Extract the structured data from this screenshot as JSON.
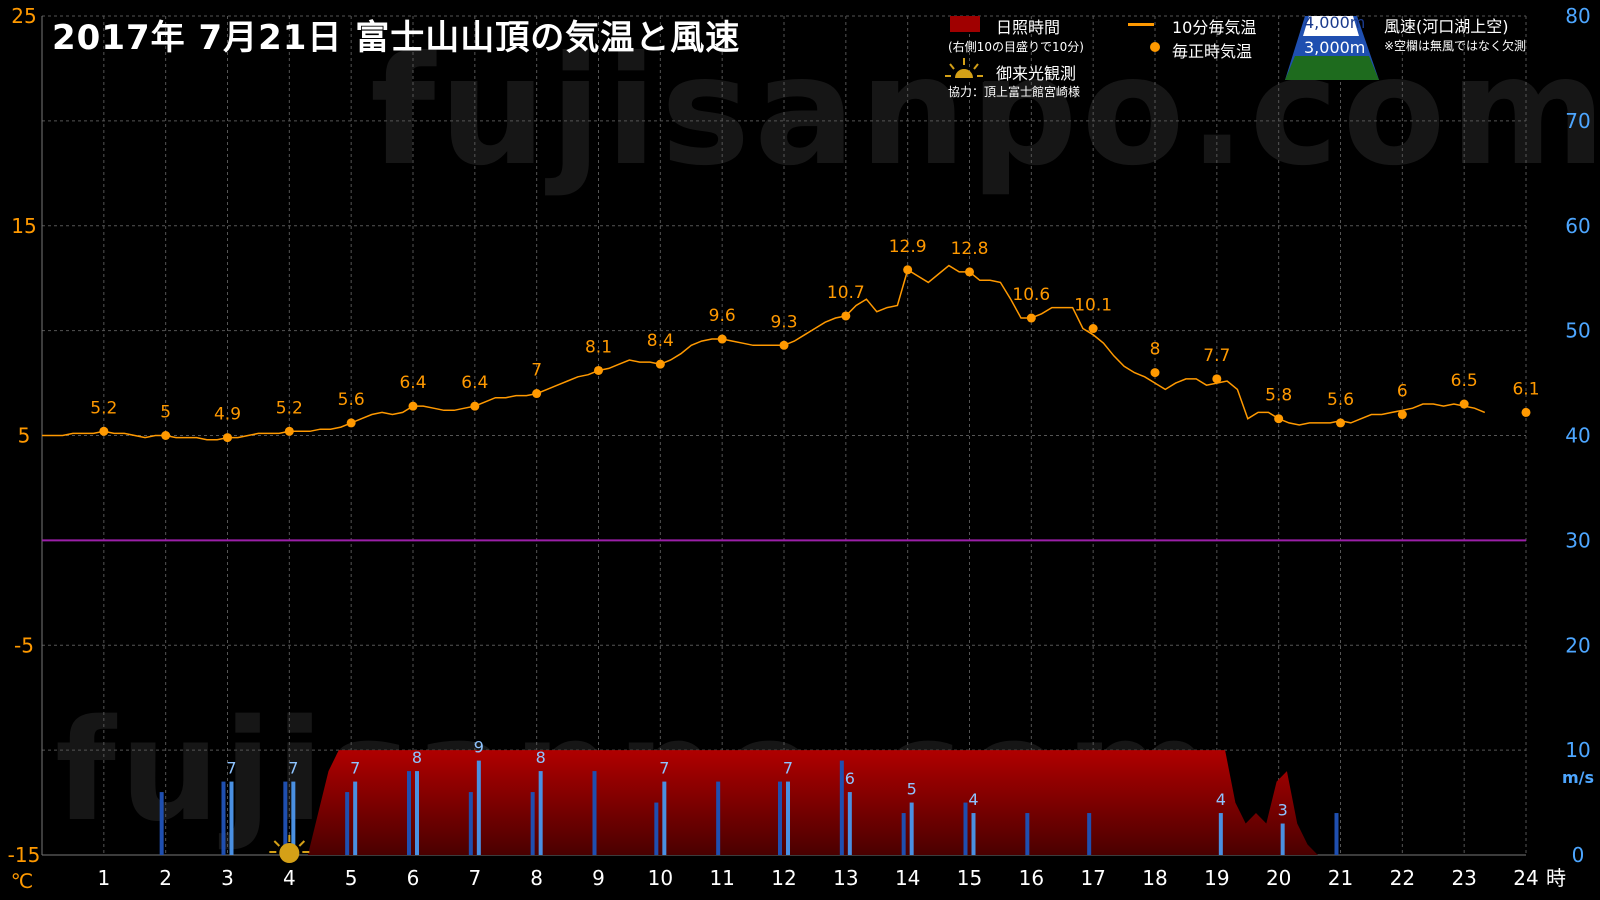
{
  "title": "2017年  7月21日   富士山山頂の気温と風速",
  "watermark": "fujisanpo.com",
  "legend": {
    "sunshine_label": "日照時間",
    "sunshine_note": "(右側10の目盛りで10分)",
    "temp10_label": "10分毎気温",
    "hourly_label": "毎正時気温",
    "alt4000": "4,000m",
    "alt3000": "3,000m",
    "wind_label": "風速(河口湖上空)",
    "wind_note": "※空欄は無風ではなく欠測",
    "sunrise_label": "御来光観測",
    "credit": "協力：頂上富士館宮崎様"
  },
  "colors": {
    "temperature": "#ff9900",
    "wind_3000": "#1f4fb0",
    "wind_4000": "#4a90e2",
    "sunshine": "#8b0000",
    "zero_line": "#9b1fa8",
    "wind_axis": "#4da6ff",
    "background": "#000000"
  },
  "chart_data": {
    "type": "line",
    "x_unit": "時",
    "x_ticks": [
      "1",
      "2",
      "3",
      "4",
      "5",
      "6",
      "7",
      "8",
      "9",
      "10",
      "11",
      "12",
      "13",
      "14",
      "15",
      "16",
      "17",
      "18",
      "19",
      "20",
      "21",
      "22",
      "23",
      "24"
    ],
    "x_range": [
      0,
      24
    ],
    "y_left": {
      "unit": "℃",
      "range": [
        -15,
        25
      ],
      "ticks": [
        "-15",
        "-5",
        "5",
        "15",
        "25"
      ]
    },
    "y_right": {
      "unit": "m/s",
      "range": [
        0,
        80
      ],
      "ticks": [
        "0",
        "10",
        "20",
        "30",
        "40",
        "50",
        "60",
        "70",
        "80"
      ]
    },
    "grid": true,
    "hourly_temperature": {
      "hours": [
        1,
        2,
        3,
        4,
        5,
        6,
        7,
        8,
        9,
        10,
        11,
        12,
        13,
        14,
        15,
        16,
        17,
        18,
        19,
        20,
        21,
        22,
        23,
        24
      ],
      "values": [
        5.2,
        5,
        4.9,
        5.2,
        5.6,
        6.4,
        6.4,
        7,
        8.1,
        8.4,
        9.6,
        9.3,
        10.7,
        12.9,
        12.8,
        10.6,
        10.1,
        8,
        7.7,
        5.8,
        5.6,
        6,
        6.5,
        6.1
      ]
    },
    "temperature_10min": {
      "start_hour": 0,
      "step_minutes": 10,
      "values": [
        5.0,
        5.0,
        5.0,
        5.1,
        5.1,
        5.1,
        5.2,
        5.1,
        5.1,
        5.0,
        4.9,
        5.0,
        5.0,
        4.9,
        4.9,
        4.9,
        4.8,
        4.8,
        4.9,
        4.9,
        5.0,
        5.1,
        5.1,
        5.1,
        5.2,
        5.2,
        5.2,
        5.3,
        5.3,
        5.4,
        5.6,
        5.8,
        6.0,
        6.1,
        6.0,
        6.1,
        6.4,
        6.4,
        6.3,
        6.2,
        6.2,
        6.3,
        6.4,
        6.6,
        6.8,
        6.8,
        6.9,
        6.9,
        7.0,
        7.2,
        7.4,
        7.6,
        7.8,
        7.9,
        8.1,
        8.2,
        8.4,
        8.6,
        8.5,
        8.5,
        8.4,
        8.6,
        8.9,
        9.3,
        9.5,
        9.6,
        9.6,
        9.5,
        9.4,
        9.3,
        9.3,
        9.3,
        9.3,
        9.5,
        9.8,
        10.1,
        10.4,
        10.6,
        10.7,
        11.2,
        11.5,
        10.9,
        11.1,
        11.2,
        12.9,
        12.6,
        12.3,
        12.7,
        13.1,
        12.8,
        12.8,
        12.4,
        12.4,
        12.3,
        11.5,
        10.6,
        10.6,
        10.8,
        11.1,
        11.1,
        11.1,
        10.1,
        9.8,
        9.4,
        8.8,
        8.3,
        8.0,
        7.8,
        7.5,
        7.2,
        7.5,
        7.7,
        7.7,
        7.4,
        7.5,
        7.6,
        7.2,
        5.8,
        6.1,
        6.1,
        5.8,
        5.6,
        5.5,
        5.6,
        5.6,
        5.6,
        5.7,
        5.6,
        5.8,
        6.0,
        6.0,
        6.1,
        6.2,
        6.3,
        6.5,
        6.5,
        6.4,
        6.5,
        6.4,
        6.3,
        6.1
      ]
    },
    "wind_speed_3000m": {
      "hours": [
        2,
        3,
        4,
        5,
        6,
        7,
        8,
        9,
        10,
        11,
        12,
        13,
        14,
        15,
        16,
        17,
        21
      ],
      "values": [
        6,
        7,
        7,
        6,
        8,
        6,
        6,
        8,
        5,
        7,
        7,
        9,
        4,
        5,
        4,
        4,
        4
      ]
    },
    "wind_speed_4000m": {
      "hours": [
        3,
        4,
        5,
        6,
        7,
        8,
        10,
        12,
        13,
        14,
        15,
        19,
        20
      ],
      "values": [
        7,
        7,
        7,
        8,
        9,
        8,
        7,
        7,
        6,
        5,
        4,
        4,
        3
      ]
    },
    "sunshine_minutes_10min": {
      "start_hour": 4.3,
      "step_minutes": 10,
      "values": [
        0,
        4,
        8,
        10,
        10,
        10,
        10,
        10,
        10,
        10,
        10,
        10,
        10,
        10,
        10,
        10,
        10,
        10,
        10,
        10,
        10,
        10,
        10,
        10,
        10,
        10,
        10,
        10,
        10,
        10,
        10,
        10,
        10,
        10,
        10,
        10,
        10,
        10,
        10,
        10,
        10,
        10,
        10,
        10,
        10,
        10,
        10,
        10,
        10,
        10,
        10,
        10,
        10,
        10,
        10,
        10,
        10,
        10,
        10,
        10,
        10,
        10,
        10,
        10,
        10,
        10,
        10,
        10,
        10,
        10,
        10,
        10,
        10,
        10,
        10,
        10,
        10,
        10,
        10,
        10,
        10,
        10,
        10,
        10,
        10,
        10,
        10,
        10,
        10,
        10,
        5,
        3,
        4,
        3,
        7,
        8,
        3,
        1,
        0
      ]
    },
    "sunrise_hour": 4.0
  }
}
